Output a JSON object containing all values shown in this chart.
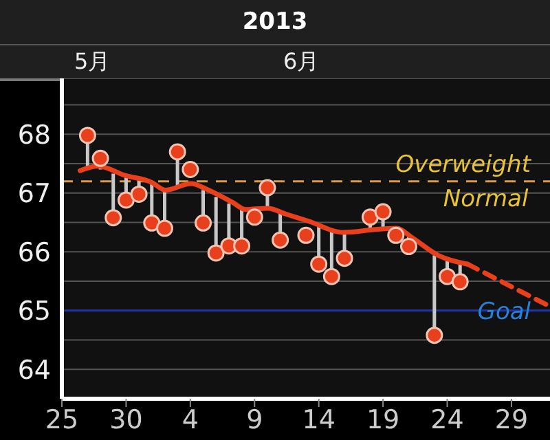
{
  "chart_data": {
    "type": "scatter",
    "title": "2013",
    "annotations": [
      "5月",
      "6月",
      {
        "text": "Normal",
        "x": "2013-06-27",
        "y": 67.2
      }
    ],
    "xlim": [
      "2013-05-25",
      "2013-07-02"
    ],
    "xticks": [
      {
        "value": "2013-05-25",
        "label": "25"
      },
      {
        "value": "2013-05-30",
        "label": "30"
      },
      {
        "value": "2013-06-04",
        "label": "4"
      },
      {
        "value": "2013-06-09",
        "label": "9"
      },
      {
        "value": "2013-06-14",
        "label": "14"
      },
      {
        "value": "2013-06-19",
        "label": "19"
      },
      {
        "value": "2013-06-24",
        "label": "24"
      },
      {
        "value": "2013-06-29",
        "label": "29"
      }
    ],
    "ylim": [
      63.5,
      68.95
    ],
    "yticks": [
      64,
      {
        "value": 64.5,
        "label": null
      },
      65,
      {
        "value": 65.5,
        "label": null
      },
      66,
      {
        "value": 66.5,
        "label": null
      },
      67,
      {
        "value": 67.5,
        "label": null
      },
      68,
      {
        "value": 68.5,
        "label": null
      }
    ],
    "grid": "y",
    "ref_lines": [
      {
        "axis": "y",
        "value": 67.2,
        "label": "Overweight",
        "color": "#d89a50",
        "line_style": "dashed"
      },
      {
        "axis": "y",
        "value": 65,
        "label": "Goal",
        "color": "#2233aa",
        "line_style": "solid"
      }
    ],
    "series": [
      {
        "color": "#e8401c",
        "marker": "circle",
        "x": [
          "2013-05-27",
          "2013-05-28",
          "2013-05-29",
          "2013-05-30",
          "2013-05-31",
          "2013-06-01",
          "2013-06-02",
          "2013-06-03",
          "2013-06-04",
          "2013-06-05",
          "2013-06-06",
          "2013-06-07",
          "2013-06-08",
          "2013-06-09",
          "2013-06-10",
          "2013-06-11",
          "2013-06-13",
          "2013-06-14",
          "2013-06-15",
          "2013-06-16",
          "2013-06-18",
          "2013-06-19",
          "2013-06-20",
          "2013-06-21",
          "2013-06-23",
          "2013-06-24",
          "2013-06-25"
        ],
        "values": [
          67.98,
          67.59,
          66.58,
          66.88,
          66.98,
          66.49,
          66.4,
          67.7,
          67.4,
          66.49,
          65.98,
          66.1,
          66.1,
          66.59,
          67.09,
          66.2,
          66.28,
          65.79,
          65.58,
          65.89,
          66.59,
          66.68,
          66.28,
          66.09,
          64.58,
          65.58,
          65.49
        ],
        "errors": [
          [
            67.42,
            67.98
          ],
          [
            67.4,
            67.59
          ],
          [
            66.58,
            67.33
          ],
          [
            66.88,
            67.28
          ],
          [
            66.98,
            67.22
          ],
          [
            66.49,
            67.15
          ],
          [
            66.4,
            67.05
          ],
          [
            67.1,
            67.7
          ],
          null,
          [
            66.49,
            67.05
          ],
          [
            65.98,
            66.93
          ],
          [
            66.1,
            66.82
          ],
          [
            66.1,
            66.74
          ],
          null,
          [
            66.74,
            67.09
          ],
          [
            66.2,
            66.68
          ],
          null,
          [
            65.79,
            66.45
          ],
          [
            65.58,
            66.36
          ],
          [
            65.89,
            66.33
          ],
          [
            66.38,
            66.59
          ],
          [
            66.4,
            66.68
          ],
          null,
          [
            66.09,
            66.25
          ],
          [
            64.58,
            65.94
          ],
          [
            65.58,
            65.85
          ],
          [
            65.49,
            65.79
          ]
        ]
      },
      {
        "type": "line",
        "color": "#e8401c",
        "marker": "none",
        "line_style": "solid",
        "x": [
          "2013-05-26T10:00",
          "2013-05-27T19:00",
          "2013-05-29T22:00",
          "2013-06-01T00:00",
          "2013-06-02T01:00",
          "2013-06-04T02:00",
          "2013-06-05T05:00",
          "2013-06-07T07:00",
          "2013-06-08T07:00",
          "2013-06-10T01:00",
          "2013-06-11T11:00",
          "2013-06-13T05:00",
          "2013-06-15T22:00",
          "2013-06-18T10:00",
          "2013-06-20T02:00",
          "2013-06-21T05:00",
          "2013-06-23T07:00",
          "2013-06-25T14:00"
        ],
        "values": [
          67.38,
          67.46,
          67.3,
          67.18,
          67.05,
          67.16,
          67.07,
          66.84,
          66.72,
          66.74,
          66.64,
          66.52,
          66.33,
          66.38,
          66.4,
          66.25,
          65.94,
          65.79
        ]
      },
      {
        "type": "line",
        "color": "#e8401c",
        "marker": "none",
        "line_style": "dashed",
        "x": [
          "2013-06-25T14:00",
          "2013-07-02"
        ],
        "values": [
          65.79,
          65.07
        ]
      }
    ]
  }
}
